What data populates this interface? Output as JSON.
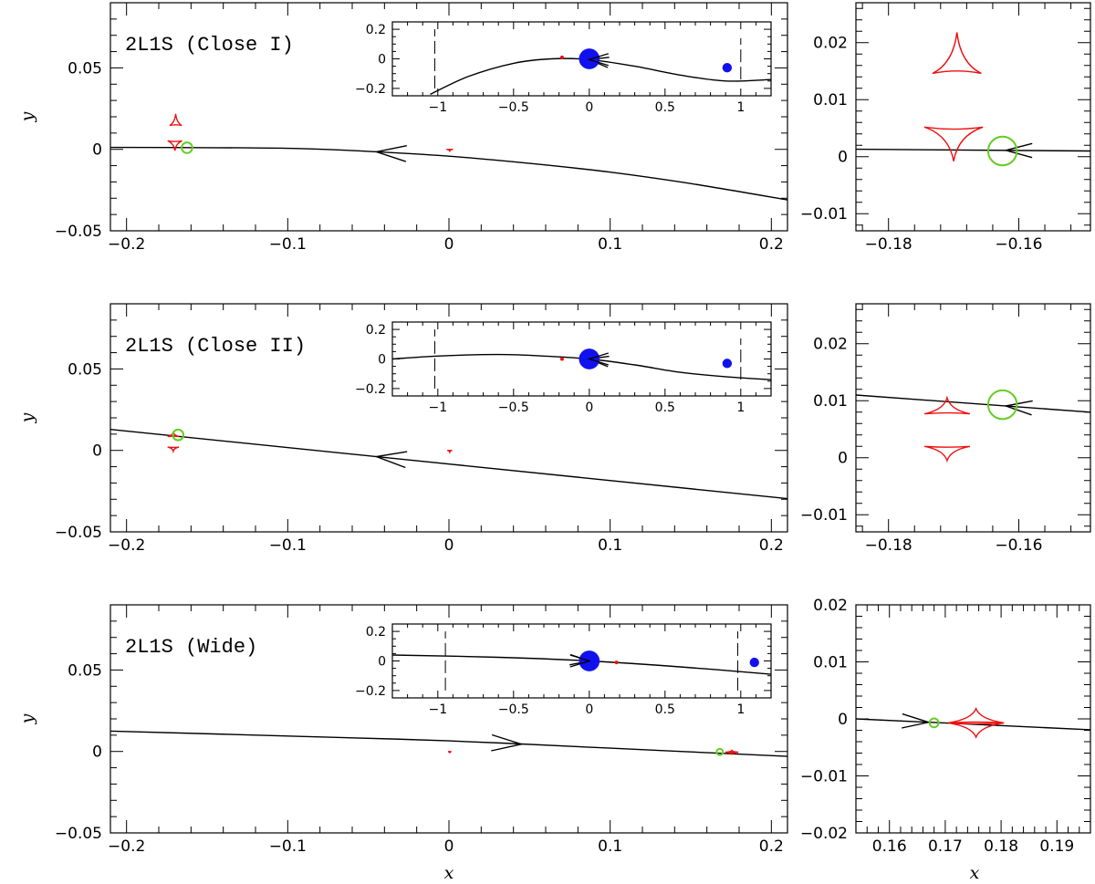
{
  "colors": {
    "trajectory": "#000000",
    "caustic": "#ee1111",
    "source": "#66cc22",
    "lens": "#1111ee",
    "critical": "#000000"
  },
  "chart_data": [
    {
      "type": "line",
      "name": "close1-main",
      "title": "2L1S (Close I)",
      "xlabel": "",
      "ylabel": "y",
      "xlim": [
        -0.21,
        0.21
      ],
      "ylim": [
        -0.05,
        0.09
      ],
      "xticks": [
        -0.2,
        -0.1,
        0,
        0.1,
        0.2
      ],
      "xtick_labels": [
        "−0.2",
        "−0.1",
        "0",
        "0.1",
        "0.2"
      ],
      "yticks": [
        -0.05,
        0,
        0.05
      ],
      "ytick_labels": [
        "−0.05",
        "0",
        "0.05"
      ],
      "trajectory": {
        "x": [
          -0.21,
          -0.16,
          -0.1,
          -0.05,
          0,
          0.05,
          0.1,
          0.15,
          0.21
        ],
        "y": [
          0.0012,
          0.0011,
          0.0006,
          -0.0012,
          -0.0042,
          -0.0086,
          -0.014,
          -0.021,
          -0.031
        ],
        "arrow_at": -0.045,
        "arrow_dir": "left"
      },
      "caustics": [
        {
          "cx": -0.1695,
          "cy": 0.0146,
          "w": 0.0075,
          "h": 0.0072,
          "up": true
        },
        {
          "cx": -0.17,
          "cy": 0.0052,
          "w": 0.009,
          "h": 0.006,
          "up": false
        },
        {
          "cx": 0.0005,
          "cy": 0.0,
          "w": 0.004,
          "h": 0.001,
          "up": false
        }
      ],
      "source": {
        "x": -0.1625,
        "y": 0.001,
        "r": 0.0033
      }
    },
    {
      "type": "line",
      "name": "close1-inset",
      "title": "",
      "xlabel": "",
      "ylabel": "",
      "xlim": [
        -1.3,
        1.2
      ],
      "ylim": [
        -0.25,
        0.25
      ],
      "xticks": [
        -1,
        -0.5,
        0,
        0.5,
        1
      ],
      "xtick_labels": [
        "−1",
        "−0.5",
        "0",
        "0.5",
        "1"
      ],
      "yticks": [
        -0.2,
        0,
        0.2
      ],
      "ytick_labels": [
        "−0.2",
        "0",
        "0.2"
      ],
      "trajectory": {
        "x": [
          -1.05,
          -0.8,
          -0.5,
          -0.25,
          0,
          0.3,
          0.6,
          0.9,
          1.2
        ],
        "y": [
          -0.24,
          -0.12,
          -0.03,
          0.0,
          -0.005,
          -0.05,
          -0.11,
          -0.15,
          -0.14
        ],
        "arrow_at": 0.0,
        "arrow_dir": "left"
      },
      "lenses": [
        {
          "x": 0.0,
          "y": 0.0,
          "r": 0.07
        },
        {
          "x": 0.91,
          "y": -0.06,
          "r": 0.032
        }
      ],
      "caustic_marks": [
        {
          "x": -0.18,
          "y": 0.01
        }
      ],
      "critical_segments": [
        {
          "x": -1.02,
          "y1": -0.2,
          "y2": 0.2
        },
        {
          "x": 1.0,
          "y1": -0.14,
          "y2": 0.14
        }
      ]
    },
    {
      "type": "line",
      "name": "close1-zoom",
      "title": "",
      "xlabel": "",
      "ylabel": "",
      "xlim": [
        -0.185,
        -0.149
      ],
      "ylim": [
        -0.013,
        0.027
      ],
      "xticks": [
        -0.18,
        -0.16
      ],
      "xtick_labels": [
        "−0.18",
        "−0.16"
      ],
      "yticks": [
        -0.01,
        0,
        0.01,
        0.02
      ],
      "ytick_labels": [
        "−0.01",
        "0",
        "0.01",
        "0.02"
      ],
      "trajectory": {
        "x": [
          -0.185,
          -0.149
        ],
        "y": [
          0.0013,
          0.001
        ],
        "arrow_at": -0.162,
        "arrow_dir": "left"
      },
      "caustics": [
        {
          "cx": -0.1695,
          "cy": 0.0146,
          "w": 0.0075,
          "h": 0.0072,
          "up": true
        },
        {
          "cx": -0.17,
          "cy": 0.0052,
          "w": 0.009,
          "h": 0.006,
          "up": false
        }
      ],
      "source": {
        "x": -0.1625,
        "y": 0.001,
        "r": 0.0022
      }
    },
    {
      "type": "line",
      "name": "close2-main",
      "title": "2L1S (Close II)",
      "xlabel": "",
      "ylabel": "y",
      "xlim": [
        -0.21,
        0.21
      ],
      "ylim": [
        -0.05,
        0.09
      ],
      "xticks": [
        -0.2,
        -0.1,
        0,
        0.1,
        0.2
      ],
      "xtick_labels": [
        "−0.2",
        "−0.1",
        "0",
        "0.1",
        "0.2"
      ],
      "yticks": [
        -0.05,
        0,
        0.05
      ],
      "ytick_labels": [
        "−0.05",
        "0",
        "0.05"
      ],
      "trajectory": {
        "x": [
          -0.21,
          0.21
        ],
        "y": [
          0.0129,
          -0.0296
        ],
        "arrow_at": -0.045,
        "arrow_dir": "left"
      },
      "caustics": [
        {
          "cx": -0.171,
          "cy": 0.0085,
          "w": 0.007,
          "h": 0.0028,
          "up": true
        },
        {
          "cx": -0.171,
          "cy": 0.002,
          "w": 0.007,
          "h": 0.0025,
          "up": false
        },
        {
          "cx": 0.0005,
          "cy": 0.0,
          "w": 0.003,
          "h": 0.001,
          "up": false
        }
      ],
      "source": {
        "x": -0.168,
        "y": 0.0095,
        "r": 0.0033
      }
    },
    {
      "type": "line",
      "name": "close2-inset",
      "title": "",
      "xlabel": "",
      "ylabel": "",
      "xlim": [
        -1.3,
        1.2
      ],
      "ylim": [
        -0.25,
        0.25
      ],
      "xticks": [
        -1,
        -0.5,
        0,
        0.5,
        1
      ],
      "xtick_labels": [
        "−1",
        "−0.5",
        "0",
        "0.5",
        "1"
      ],
      "yticks": [
        -0.2,
        0,
        0.2
      ],
      "ytick_labels": [
        "−0.2",
        "0",
        "0.2"
      ],
      "trajectory": {
        "x": [
          -1.3,
          -1.0,
          -0.6,
          -0.3,
          0,
          0.3,
          0.6,
          0.9,
          1.2
        ],
        "y": [
          0.0,
          0.02,
          0.03,
          0.02,
          0.0,
          -0.04,
          -0.09,
          -0.12,
          -0.14
        ],
        "arrow_at": 0.0,
        "arrow_dir": "left"
      },
      "lenses": [
        {
          "x": 0.0,
          "y": 0.0,
          "r": 0.07
        },
        {
          "x": 0.91,
          "y": -0.03,
          "r": 0.032
        }
      ],
      "caustic_marks": [
        {
          "x": -0.18,
          "y": 0.0
        }
      ],
      "critical_segments": [
        {
          "x": -1.02,
          "y1": -0.2,
          "y2": 0.2
        },
        {
          "x": 1.0,
          "y1": -0.14,
          "y2": 0.14
        }
      ]
    },
    {
      "type": "line",
      "name": "close2-zoom",
      "title": "",
      "xlabel": "",
      "ylabel": "",
      "xlim": [
        -0.185,
        -0.149
      ],
      "ylim": [
        -0.013,
        0.027
      ],
      "xticks": [
        -0.18,
        -0.16
      ],
      "xtick_labels": [
        "−0.18",
        "−0.16"
      ],
      "yticks": [
        -0.01,
        0,
        0.01,
        0.02
      ],
      "ytick_labels": [
        "−0.01",
        "0",
        "0.01",
        "0.02"
      ],
      "trajectory": {
        "x": [
          -0.185,
          -0.149
        ],
        "y": [
          0.011,
          0.008
        ],
        "arrow_at": -0.162,
        "arrow_dir": "left"
      },
      "caustics": [
        {
          "cx": -0.171,
          "cy": 0.0077,
          "w": 0.007,
          "h": 0.0028,
          "up": true
        },
        {
          "cx": -0.171,
          "cy": 0.002,
          "w": 0.007,
          "h": 0.0025,
          "up": false
        }
      ],
      "source": {
        "x": -0.1625,
        "y": 0.0093,
        "r": 0.0022
      }
    },
    {
      "type": "line",
      "name": "wide-main",
      "title": "2L1S (Wide)",
      "xlabel": "x",
      "ylabel": "y",
      "xlim": [
        -0.21,
        0.21
      ],
      "ylim": [
        -0.05,
        0.09
      ],
      "xticks": [
        -0.2,
        -0.1,
        0,
        0.1,
        0.2
      ],
      "xtick_labels": [
        "−0.2",
        "−0.1",
        "0",
        "0.1",
        "0.2"
      ],
      "yticks": [
        -0.05,
        0,
        0.05
      ],
      "ytick_labels": [
        "−0.05",
        "0",
        "0.05"
      ],
      "trajectory": {
        "x": [
          -0.21,
          -0.1,
          0,
          0.1,
          0.21
        ],
        "y": [
          0.0125,
          0.0095,
          0.0065,
          0.002,
          -0.003
        ],
        "arrow_at": 0.045,
        "arrow_dir": "right"
      },
      "caustics": [
        {
          "cx": 0.1755,
          "cy": -0.0005,
          "w": 0.008,
          "h": 0.0012,
          "up": true
        },
        {
          "cx": 0.1755,
          "cy": -0.0005,
          "w": 0.008,
          "h": 0.0012,
          "up": false
        },
        {
          "cx": 0.0005,
          "cy": 0.0,
          "w": 0.002,
          "h": 0.001,
          "up": false
        }
      ],
      "source": {
        "x": 0.168,
        "y": -0.0003,
        "r": 0.001
      }
    },
    {
      "type": "line",
      "name": "wide-inset",
      "title": "",
      "xlabel": "",
      "ylabel": "",
      "xlim": [
        -1.3,
        1.2
      ],
      "ylim": [
        -0.25,
        0.25
      ],
      "xticks": [
        -1,
        -0.5,
        0,
        0.5,
        1
      ],
      "xtick_labels": [
        "−1",
        "−0.5",
        "0",
        "0.5",
        "1"
      ],
      "yticks": [
        -0.2,
        0,
        0.2
      ],
      "ytick_labels": [
        "−0.2",
        "0",
        "0.2"
      ],
      "trajectory": {
        "x": [
          -1.3,
          -0.6,
          0,
          0.6,
          1.2
        ],
        "y": [
          0.04,
          0.025,
          0.0,
          -0.04,
          -0.09
        ],
        "arrow_at": 0.0,
        "arrow_dir": "right"
      },
      "lenses": [
        {
          "x": 0.0,
          "y": 0.0,
          "r": 0.07
        },
        {
          "x": 1.09,
          "y": -0.01,
          "r": 0.032
        }
      ],
      "caustic_marks": [
        {
          "x": 0.18,
          "y": -0.01
        }
      ],
      "critical_segments": [
        {
          "x": -0.95,
          "y1": -0.2,
          "y2": 0.2
        },
        {
          "x": 0.98,
          "y1": -0.2,
          "y2": 0.2
        }
      ]
    },
    {
      "type": "line",
      "name": "wide-zoom",
      "title": "",
      "xlabel": "x",
      "ylabel": "",
      "xlim": [
        0.154,
        0.196
      ],
      "ylim": [
        -0.02,
        0.02
      ],
      "xticks": [
        0.16,
        0.17,
        0.18,
        0.19
      ],
      "xtick_labels": [
        "0.16",
        "0.17",
        "0.18",
        "0.19"
      ],
      "yticks": [
        -0.02,
        -0.01,
        0,
        0.01,
        0.02
      ],
      "ytick_labels": [
        "−0.02",
        "−0.01",
        "0",
        "0.01",
        "0.02"
      ],
      "trajectory": {
        "x": [
          0.154,
          0.196
        ],
        "y": [
          0.0,
          -0.0019
        ],
        "arrow_at": 0.167,
        "arrow_dir": "right"
      },
      "caustics": [
        {
          "cx": 0.1755,
          "cy": -0.0007,
          "w": 0.01,
          "h": 0.0025,
          "up": true
        },
        {
          "cx": 0.1755,
          "cy": -0.0007,
          "w": 0.01,
          "h": 0.0025,
          "up": false
        }
      ],
      "source": {
        "x": 0.168,
        "y": -0.0007,
        "r": 0.0008
      }
    }
  ]
}
